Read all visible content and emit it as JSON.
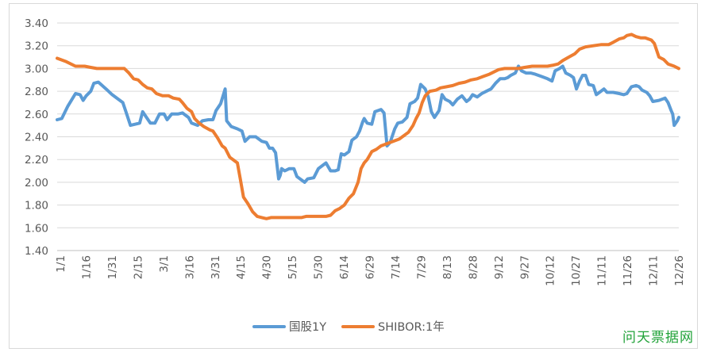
{
  "watermark": "问天票据网",
  "chart_data": {
    "type": "line",
    "title": "",
    "xlabel": "",
    "ylabel": "",
    "ylim": [
      1.4,
      3.4
    ],
    "yticks": [
      "1.40",
      "1.60",
      "1.80",
      "2.00",
      "2.20",
      "2.40",
      "2.60",
      "2.80",
      "3.00",
      "3.20",
      "3.40"
    ],
    "xticks": [
      "1/1",
      "1/16",
      "1/31",
      "2/15",
      "3/1",
      "3/16",
      "3/31",
      "4/15",
      "4/30",
      "5/15",
      "5/30",
      "6/14",
      "6/29",
      "7/14",
      "7/29",
      "8/13",
      "8/28",
      "9/12",
      "9/27",
      "10/12",
      "10/27",
      "11/11",
      "11/26",
      "12/11",
      "12/26"
    ],
    "grid": true,
    "legend_position": "bottom",
    "series": [
      {
        "name": "国股1Y",
        "color": "#5b9bd5",
        "points": [
          [
            0,
            2.55
          ],
          [
            3,
            2.56
          ],
          [
            7,
            2.67
          ],
          [
            12,
            2.78
          ],
          [
            15,
            2.77
          ],
          [
            17,
            2.72
          ],
          [
            19,
            2.76
          ],
          [
            22,
            2.8
          ],
          [
            24,
            2.87
          ],
          [
            27,
            2.88
          ],
          [
            32,
            2.82
          ],
          [
            36,
            2.77
          ],
          [
            40,
            2.73
          ],
          [
            43,
            2.7
          ],
          [
            45,
            2.62
          ],
          [
            48,
            2.5
          ],
          [
            51,
            2.51
          ],
          [
            54,
            2.52
          ],
          [
            56,
            2.62
          ],
          [
            58,
            2.58
          ],
          [
            61,
            2.52
          ],
          [
            64,
            2.52
          ],
          [
            67,
            2.6
          ],
          [
            70,
            2.6
          ],
          [
            72,
            2.55
          ],
          [
            75,
            2.6
          ],
          [
            79,
            2.6
          ],
          [
            82,
            2.61
          ],
          [
            86,
            2.57
          ],
          [
            88,
            2.52
          ],
          [
            92,
            2.5
          ],
          [
            95,
            2.54
          ],
          [
            99,
            2.55
          ],
          [
            102,
            2.55
          ],
          [
            104,
            2.63
          ],
          [
            107,
            2.69
          ],
          [
            110,
            2.82
          ],
          [
            111,
            2.54
          ],
          [
            114,
            2.49
          ],
          [
            118,
            2.47
          ],
          [
            121,
            2.45
          ],
          [
            123,
            2.36
          ],
          [
            126,
            2.4
          ],
          [
            130,
            2.4
          ],
          [
            134,
            2.36
          ],
          [
            137,
            2.35
          ],
          [
            139,
            2.3
          ],
          [
            141,
            2.3
          ],
          [
            143,
            2.26
          ],
          [
            145,
            2.03
          ],
          [
            146,
            2.06
          ],
          [
            147,
            2.12
          ],
          [
            149,
            2.1
          ],
          [
            152,
            2.12
          ],
          [
            155,
            2.12
          ],
          [
            157,
            2.05
          ],
          [
            160,
            2.02
          ],
          [
            162,
            2.0
          ],
          [
            164,
            2.03
          ],
          [
            168,
            2.04
          ],
          [
            171,
            2.12
          ],
          [
            174,
            2.15
          ],
          [
            176,
            2.17
          ],
          [
            179,
            2.1
          ],
          [
            182,
            2.1
          ],
          [
            184,
            2.11
          ],
          [
            186,
            2.25
          ],
          [
            188,
            2.24
          ],
          [
            191,
            2.27
          ],
          [
            193,
            2.37
          ],
          [
            196,
            2.4
          ],
          [
            198,
            2.45
          ],
          [
            200,
            2.53
          ],
          [
            201,
            2.56
          ],
          [
            203,
            2.52
          ],
          [
            206,
            2.51
          ],
          [
            208,
            2.62
          ],
          [
            212,
            2.64
          ],
          [
            214,
            2.61
          ],
          [
            216,
            2.32
          ],
          [
            218,
            2.35
          ],
          [
            221,
            2.47
          ],
          [
            223,
            2.52
          ],
          [
            226,
            2.53
          ],
          [
            229,
            2.57
          ],
          [
            231,
            2.69
          ],
          [
            234,
            2.71
          ],
          [
            236,
            2.74
          ],
          [
            238,
            2.86
          ],
          [
            241,
            2.82
          ],
          [
            243,
            2.75
          ],
          [
            245,
            2.62
          ],
          [
            247,
            2.57
          ],
          [
            250,
            2.63
          ],
          [
            252,
            2.77
          ],
          [
            254,
            2.73
          ],
          [
            257,
            2.71
          ],
          [
            259,
            2.68
          ],
          [
            262,
            2.73
          ],
          [
            265,
            2.76
          ],
          [
            268,
            2.71
          ],
          [
            270,
            2.73
          ],
          [
            272,
            2.77
          ],
          [
            275,
            2.75
          ],
          [
            278,
            2.78
          ],
          [
            281,
            2.8
          ],
          [
            284,
            2.82
          ],
          [
            287,
            2.87
          ],
          [
            290,
            2.91
          ],
          [
            293,
            2.91
          ],
          [
            295,
            2.92
          ],
          [
            297,
            2.94
          ],
          [
            300,
            2.96
          ],
          [
            302,
            3.02
          ],
          [
            304,
            2.98
          ],
          [
            307,
            2.96
          ],
          [
            310,
            2.96
          ],
          [
            313,
            2.95
          ],
          [
            317,
            2.93
          ],
          [
            321,
            2.91
          ],
          [
            324,
            2.89
          ],
          [
            326,
            2.98
          ],
          [
            329,
            3.0
          ],
          [
            331,
            3.02
          ],
          [
            333,
            2.96
          ],
          [
            336,
            2.94
          ],
          [
            338,
            2.92
          ],
          [
            340,
            2.82
          ],
          [
            342,
            2.89
          ],
          [
            344,
            2.94
          ],
          [
            346,
            2.94
          ],
          [
            348,
            2.86
          ],
          [
            351,
            2.85
          ],
          [
            353,
            2.77
          ],
          [
            356,
            2.8
          ],
          [
            358,
            2.82
          ],
          [
            360,
            2.79
          ],
          [
            364,
            2.79
          ],
          [
            368,
            2.78
          ],
          [
            371,
            2.77
          ],
          [
            373,
            2.78
          ],
          [
            376,
            2.84
          ],
          [
            379,
            2.85
          ],
          [
            381,
            2.84
          ],
          [
            383,
            2.81
          ],
          [
            386,
            2.79
          ],
          [
            388,
            2.76
          ],
          [
            390,
            2.71
          ],
          [
            394,
            2.72
          ],
          [
            398,
            2.74
          ],
          [
            400,
            2.7
          ],
          [
            402,
            2.63
          ],
          [
            403,
            2.6
          ],
          [
            404,
            2.5
          ],
          [
            406,
            2.54
          ],
          [
            407,
            2.57
          ]
        ]
      },
      {
        "name": "SHIBOR:1年",
        "color": "#ed7d31",
        "points": [
          [
            0,
            3.09
          ],
          [
            6,
            3.06
          ],
          [
            12,
            3.02
          ],
          [
            18,
            3.02
          ],
          [
            22,
            3.01
          ],
          [
            26,
            3.0
          ],
          [
            31,
            3.0
          ],
          [
            36,
            3.0
          ],
          [
            41,
            3.0
          ],
          [
            44,
            3.0
          ],
          [
            47,
            2.96
          ],
          [
            50,
            2.91
          ],
          [
            53,
            2.9
          ],
          [
            56,
            2.86
          ],
          [
            59,
            2.83
          ],
          [
            62,
            2.82
          ],
          [
            65,
            2.78
          ],
          [
            69,
            2.76
          ],
          [
            73,
            2.76
          ],
          [
            76,
            2.74
          ],
          [
            80,
            2.73
          ],
          [
            82,
            2.7
          ],
          [
            85,
            2.65
          ],
          [
            88,
            2.62
          ],
          [
            90,
            2.56
          ],
          [
            93,
            2.52
          ],
          [
            96,
            2.49
          ],
          [
            100,
            2.46
          ],
          [
            102,
            2.45
          ],
          [
            105,
            2.39
          ],
          [
            108,
            2.32
          ],
          [
            110,
            2.3
          ],
          [
            113,
            2.22
          ],
          [
            116,
            2.19
          ],
          [
            118,
            2.17
          ],
          [
            120,
            2.02
          ],
          [
            122,
            1.87
          ],
          [
            125,
            1.81
          ],
          [
            128,
            1.74
          ],
          [
            131,
            1.7
          ],
          [
            134,
            1.69
          ],
          [
            137,
            1.68
          ],
          [
            140,
            1.69
          ],
          [
            144,
            1.69
          ],
          [
            150,
            1.69
          ],
          [
            156,
            1.69
          ],
          [
            160,
            1.69
          ],
          [
            163,
            1.7
          ],
          [
            167,
            1.7
          ],
          [
            171,
            1.7
          ],
          [
            176,
            1.7
          ],
          [
            179,
            1.71
          ],
          [
            182,
            1.75
          ],
          [
            185,
            1.77
          ],
          [
            188,
            1.8
          ],
          [
            191,
            1.86
          ],
          [
            194,
            1.9
          ],
          [
            197,
            2.0
          ],
          [
            199,
            2.12
          ],
          [
            201,
            2.17
          ],
          [
            203,
            2.2
          ],
          [
            206,
            2.27
          ],
          [
            209,
            2.29
          ],
          [
            212,
            2.32
          ],
          [
            216,
            2.34
          ],
          [
            220,
            2.36
          ],
          [
            224,
            2.38
          ],
          [
            227,
            2.41
          ],
          [
            230,
            2.44
          ],
          [
            233,
            2.5
          ],
          [
            235,
            2.56
          ],
          [
            237,
            2.61
          ],
          [
            239,
            2.7
          ],
          [
            241,
            2.76
          ],
          [
            244,
            2.8
          ],
          [
            248,
            2.81
          ],
          [
            251,
            2.83
          ],
          [
            255,
            2.84
          ],
          [
            259,
            2.85
          ],
          [
            263,
            2.87
          ],
          [
            267,
            2.88
          ],
          [
            271,
            2.9
          ],
          [
            275,
            2.91
          ],
          [
            279,
            2.93
          ],
          [
            283,
            2.95
          ],
          [
            286,
            2.97
          ],
          [
            289,
            2.99
          ],
          [
            293,
            3.0
          ],
          [
            298,
            3.0
          ],
          [
            302,
            3.0
          ],
          [
            306,
            3.01
          ],
          [
            311,
            3.02
          ],
          [
            316,
            3.02
          ],
          [
            321,
            3.02
          ],
          [
            325,
            3.03
          ],
          [
            328,
            3.04
          ],
          [
            331,
            3.07
          ],
          [
            335,
            3.1
          ],
          [
            339,
            3.13
          ],
          [
            342,
            3.17
          ],
          [
            346,
            3.19
          ],
          [
            351,
            3.2
          ],
          [
            356,
            3.21
          ],
          [
            361,
            3.21
          ],
          [
            364,
            3.23
          ],
          [
            368,
            3.26
          ],
          [
            371,
            3.27
          ],
          [
            373,
            3.29
          ],
          [
            376,
            3.3
          ],
          [
            379,
            3.28
          ],
          [
            382,
            3.27
          ],
          [
            385,
            3.27
          ],
          [
            387,
            3.26
          ],
          [
            389,
            3.25
          ],
          [
            391,
            3.22
          ],
          [
            394,
            3.1
          ],
          [
            397,
            3.08
          ],
          [
            400,
            3.04
          ],
          [
            404,
            3.02
          ],
          [
            407,
            3.0
          ]
        ]
      }
    ]
  }
}
